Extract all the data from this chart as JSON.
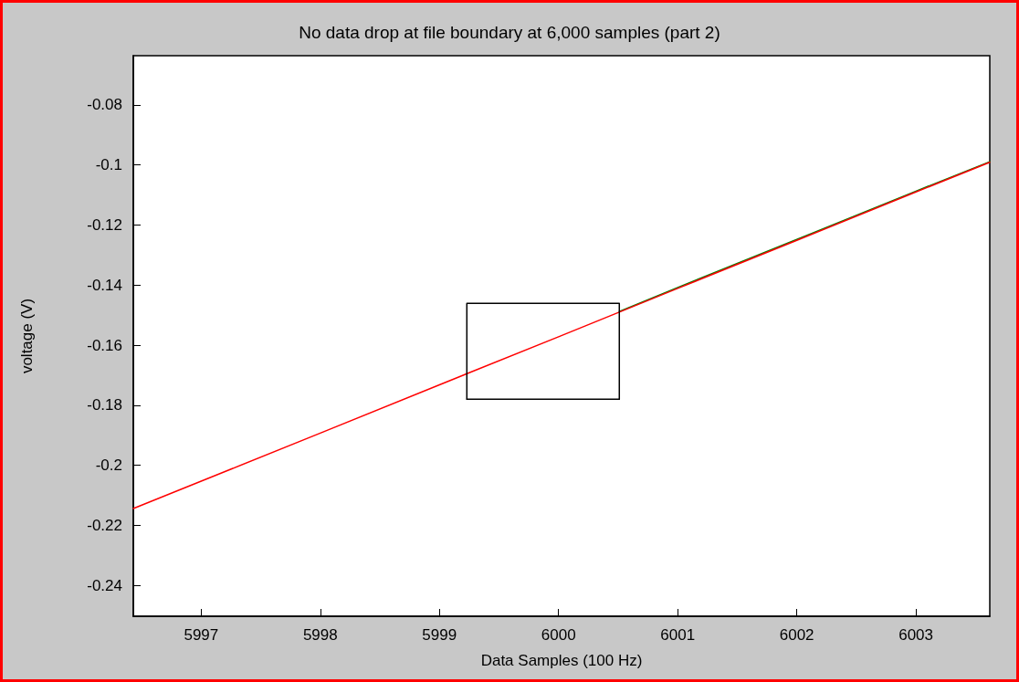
{
  "chart_data": {
    "type": "line",
    "title": "No data drop at file boundary at 6,000 samples (part 2)",
    "xlabel": "Data Samples (100 Hz)",
    "ylabel": "voltage (V)",
    "xlim": [
      5996.43,
      6003.62
    ],
    "xticks": [
      5997,
      5998,
      5999,
      6000,
      6001,
      6002,
      6003
    ],
    "ylim": [
      -0.2503,
      -0.0636
    ],
    "yticks": [
      -0.24,
      -0.22,
      -0.2,
      -0.18,
      -0.16,
      -0.14,
      -0.12,
      -0.1,
      -0.08
    ],
    "grid": false,
    "marker": "none",
    "line_style": "solid",
    "series": [
      {
        "color": "#008000",
        "x": [
          6000.51,
          6001,
          6002,
          6003,
          6003.62
        ],
        "values": [
          -0.1488,
          -0.1408,
          -0.1248,
          -0.1087,
          -0.0989
        ]
      },
      {
        "color": "#ff0000",
        "x": [
          5996.43,
          5997,
          5998,
          5999,
          6000,
          6001,
          6002,
          6003,
          6003.62
        ],
        "values": [
          -0.2144,
          -0.2053,
          -0.1893,
          -0.1732,
          -0.1572,
          -0.1411,
          -0.1251,
          -0.109,
          -0.0991
        ]
      },
      {
        "color": "#000000",
        "x": [
          5999.23,
          5999.23,
          6000.51,
          6000.51
        ],
        "values": [
          -0.178,
          -0.1461,
          -0.1461,
          -0.178
        ]
      },
      {
        "color": "#000000",
        "x": [
          5999.23,
          6000.51
        ],
        "values": [
          -0.178,
          -0.178
        ]
      }
    ]
  }
}
